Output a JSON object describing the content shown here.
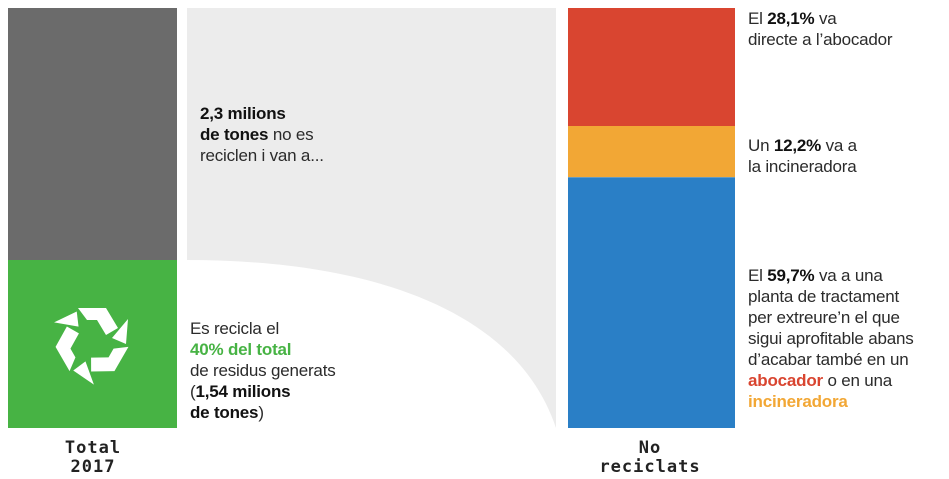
{
  "colors": {
    "non_recycled": "#6b6b6b",
    "recycled": "#47b344",
    "flow": "#ececec",
    "landfill": "#d94530",
    "incinerator": "#f2a735",
    "treatment": "#2a7fc6"
  },
  "icons": {
    "recycle": "recycle-icon"
  },
  "chart_data": {
    "type": "bar",
    "bars": [
      {
        "label": [
          "Total",
          "2017"
        ],
        "segments": [
          {
            "name": "no es reciclen",
            "value": 60
          },
          {
            "name": "recicla",
            "value": 40
          }
        ]
      },
      {
        "label": [
          "No",
          "reciclats"
        ],
        "segments": [
          {
            "name": "abocador",
            "value": 28.1
          },
          {
            "name": "incineradora",
            "value": 12.2
          },
          {
            "name": "planta de tractament",
            "value": 59.7
          }
        ]
      }
    ],
    "annotations": {
      "not_recycled": {
        "amount": "2,3 milions",
        "unit": "de tones",
        "rest1": " no es",
        "rest2": "reciclen i van a..."
      },
      "recycled": {
        "l1": "Es recicla el",
        "pct": "40% del total",
        "l3": "de residus generats",
        "l4_open": "(",
        "amount": "1,54 milions",
        "unit": "de tones",
        "close": ")"
      },
      "landfill": {
        "pre": "El ",
        "pct": "28,1%",
        "post": " va",
        "l2": "directe a l’abocador"
      },
      "incinerator": {
        "pre": "Un ",
        "pct": "12,2%",
        "post": " va a",
        "l2": "la incineradora"
      },
      "treatment": {
        "pre": "El ",
        "pct": "59,7%",
        "post": " va a una",
        "l2": "planta de tractament",
        "l3": "per extreure’n el que",
        "l4": "sigui aprofitable abans",
        "l5": "d’acabar també en un",
        "w_abocador": "abocador",
        "l6_mid": " o en una",
        "w_incineradora": "incineradora"
      }
    }
  }
}
